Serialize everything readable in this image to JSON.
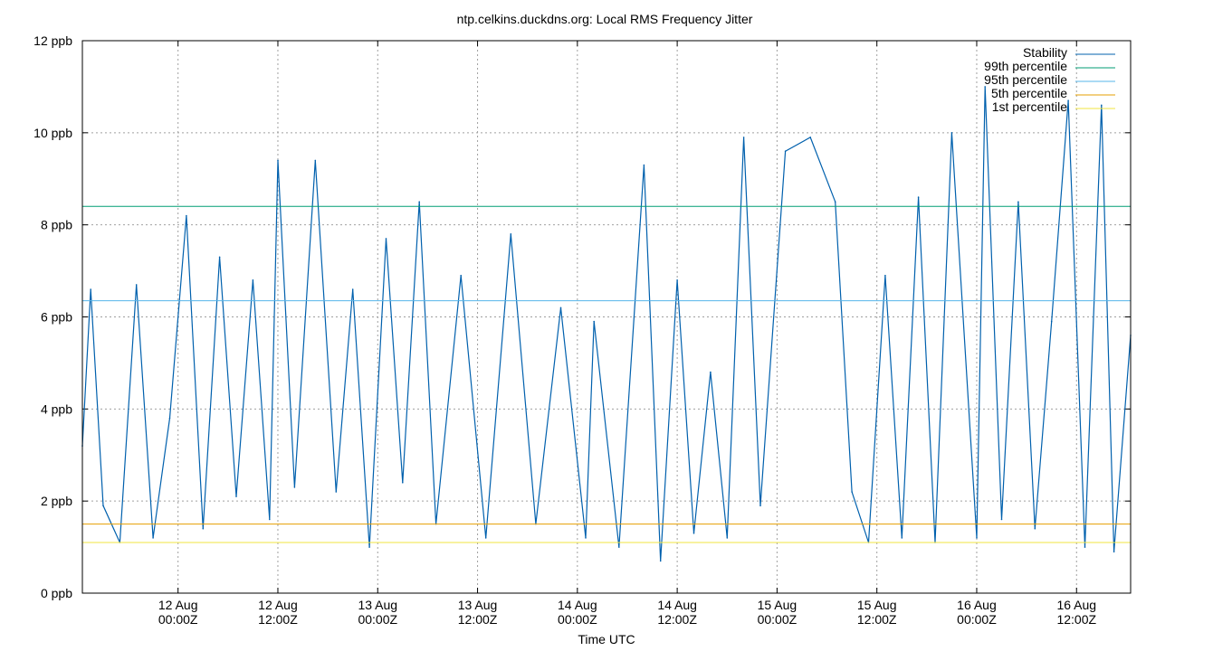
{
  "chart_data": {
    "type": "line",
    "title": "ntp.celkins.duckdns.org: Local RMS Frequency Jitter",
    "xlabel": "Time UTC",
    "ylabel": "",
    "ylim": [
      0,
      12
    ],
    "yunit": "ppb",
    "yticks": [
      {
        "value": 0,
        "label": "0 ppb"
      },
      {
        "value": 2,
        "label": "2 ppb"
      },
      {
        "value": 4,
        "label": "4 ppb"
      },
      {
        "value": 6,
        "label": "6 ppb"
      },
      {
        "value": 8,
        "label": "8 ppb"
      },
      {
        "value": 10,
        "label": "10 ppb"
      },
      {
        "value": 12,
        "label": "12 ppb"
      }
    ],
    "xlim": [
      "2023-08-11T12:30Z",
      "2023-08-16T18:30Z"
    ],
    "xticks": [
      {
        "value": "2023-08-12T00:00Z",
        "line1": "12 Aug",
        "line2": "00:00Z"
      },
      {
        "value": "2023-08-12T12:00Z",
        "line1": "12 Aug",
        "line2": "12:00Z"
      },
      {
        "value": "2023-08-13T00:00Z",
        "line1": "13 Aug",
        "line2": "00:00Z"
      },
      {
        "value": "2023-08-13T12:00Z",
        "line1": "13 Aug",
        "line2": "12:00Z"
      },
      {
        "value": "2023-08-14T00:00Z",
        "line1": "14 Aug",
        "line2": "00:00Z"
      },
      {
        "value": "2023-08-14T12:00Z",
        "line1": "14 Aug",
        "line2": "12:00Z"
      },
      {
        "value": "2023-08-15T00:00Z",
        "line1": "15 Aug",
        "line2": "00:00Z"
      },
      {
        "value": "2023-08-15T12:00Z",
        "line1": "15 Aug",
        "line2": "12:00Z"
      },
      {
        "value": "2023-08-16T00:00Z",
        "line1": "16 Aug",
        "line2": "00:00Z"
      },
      {
        "value": "2023-08-16T12:00Z",
        "line1": "16 Aug",
        "line2": "12:00Z"
      }
    ],
    "grid": true,
    "legend": "top-right",
    "series": [
      {
        "name": "Stability",
        "color": "#0060ad",
        "x": [
          "2023-08-11T12:30Z",
          "2023-08-11T13:30Z",
          "2023-08-11T15:00Z",
          "2023-08-11T17:00Z",
          "2023-08-11T19:00Z",
          "2023-08-11T21:00Z",
          "2023-08-11T23:00Z",
          "2023-08-12T01:00Z",
          "2023-08-12T03:00Z",
          "2023-08-12T05:00Z",
          "2023-08-12T07:00Z",
          "2023-08-12T09:00Z",
          "2023-08-12T11:00Z",
          "2023-08-12T12:00Z",
          "2023-08-12T14:00Z",
          "2023-08-12T16:30Z",
          "2023-08-12T19:00Z",
          "2023-08-12T21:00Z",
          "2023-08-12T23:00Z",
          "2023-08-13T01:00Z",
          "2023-08-13T03:00Z",
          "2023-08-13T05:00Z",
          "2023-08-13T07:00Z",
          "2023-08-13T10:00Z",
          "2023-08-13T13:00Z",
          "2023-08-13T16:00Z",
          "2023-08-13T19:00Z",
          "2023-08-13T22:00Z",
          "2023-08-14T01:00Z",
          "2023-08-14T02:00Z",
          "2023-08-14T05:00Z",
          "2023-08-14T08:00Z",
          "2023-08-14T10:00Z",
          "2023-08-14T12:00Z",
          "2023-08-14T14:00Z",
          "2023-08-14T16:00Z",
          "2023-08-14T18:00Z",
          "2023-08-14T20:00Z",
          "2023-08-14T22:00Z",
          "2023-08-15T01:00Z",
          "2023-08-15T04:00Z",
          "2023-08-15T07:00Z",
          "2023-08-15T09:00Z",
          "2023-08-15T11:00Z",
          "2023-08-15T13:00Z",
          "2023-08-15T15:00Z",
          "2023-08-15T17:00Z",
          "2023-08-15T19:00Z",
          "2023-08-15T21:00Z",
          "2023-08-16T00:00Z",
          "2023-08-16T01:00Z",
          "2023-08-16T03:00Z",
          "2023-08-16T05:00Z",
          "2023-08-16T07:00Z",
          "2023-08-16T09:00Z",
          "2023-08-16T11:00Z",
          "2023-08-16T13:00Z",
          "2023-08-16T15:00Z",
          "2023-08-16T16:30Z",
          "2023-08-16T18:30Z"
        ],
        "y": [
          3.2,
          6.6,
          1.9,
          1.1,
          6.7,
          1.2,
          3.8,
          8.2,
          1.4,
          7.3,
          2.1,
          6.8,
          1.6,
          9.4,
          2.3,
          9.4,
          2.2,
          6.6,
          1.0,
          7.7,
          2.4,
          8.5,
          1.5,
          6.9,
          1.2,
          7.8,
          1.5,
          6.2,
          1.2,
          5.9,
          1.0,
          9.3,
          0.7,
          6.8,
          1.3,
          4.8,
          1.2,
          9.9,
          1.9,
          9.6,
          9.9,
          8.5,
          2.2,
          1.1,
          6.9,
          1.2,
          8.6,
          1.1,
          10.0,
          1.2,
          11.0,
          1.6,
          8.5,
          1.4,
          5.9,
          10.7,
          1.0,
          10.6,
          0.9,
          5.6
        ]
      },
      {
        "name": "99th percentile",
        "color": "#009e73",
        "y_constant": 8.4
      },
      {
        "name": "95th percentile",
        "color": "#56b4e9",
        "y_constant": 6.35
      },
      {
        "name": "5th percentile",
        "color": "#e69f00",
        "y_constant": 1.5
      },
      {
        "name": "1st percentile",
        "color": "#f0e442",
        "y_constant": 1.1
      }
    ]
  }
}
